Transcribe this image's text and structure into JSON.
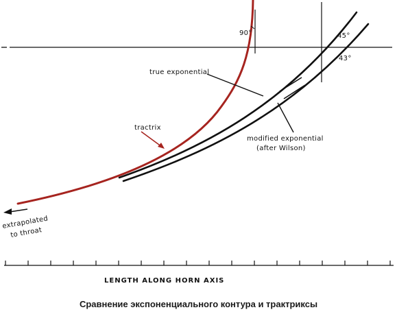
{
  "colors": {
    "tractrix": "#a6241f",
    "ink": "#111111",
    "background": "#ffffff"
  },
  "labels": {
    "angle_90": "90°",
    "angle_45": "45°",
    "angle_43": "43°",
    "true_exponential": "true exponential",
    "tractrix": "tractrix",
    "modified_exponential_line1": "modified exponential",
    "modified_exponential_line2": "(after Wilson)",
    "extrapolated_line1": "extrapolated",
    "extrapolated_line2": "to throat",
    "x_axis": "LENGTH ALONG HORN AXIS"
  },
  "caption": "Сравнение экспоненциального контура и трактриксы"
}
